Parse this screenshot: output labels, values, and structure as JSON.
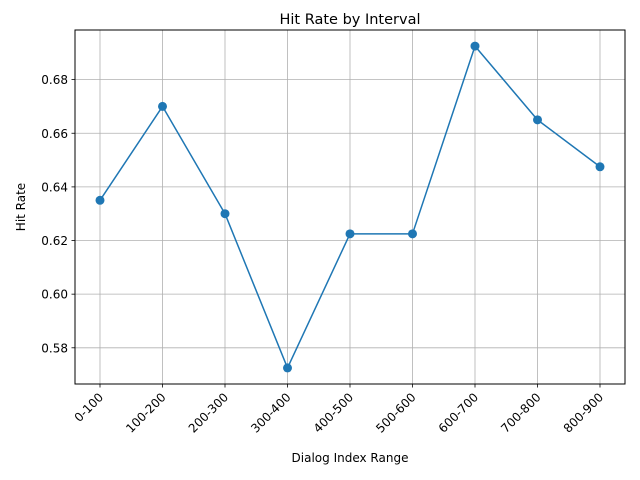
{
  "chart_data": {
    "type": "line",
    "title": "Hit Rate by Interval",
    "xlabel": "Dialog Index Range",
    "ylabel": "Hit Rate",
    "categories": [
      "0-100",
      "100-200",
      "200-300",
      "300-400",
      "400-500",
      "500-600",
      "600-700",
      "700-800",
      "800-900"
    ],
    "series": [
      {
        "values": [
          0.635,
          0.67,
          0.63,
          0.5725,
          0.6225,
          0.6225,
          0.6925,
          0.665,
          0.6475
        ]
      }
    ],
    "yticks": [
      "0.58",
      "0.60",
      "0.62",
      "0.64",
      "0.66",
      "0.68"
    ],
    "ytick_values": [
      0.58,
      0.6,
      0.62,
      0.64,
      0.66,
      0.68
    ],
    "ylim": [
      0.5665,
      0.6985
    ],
    "grid": true,
    "marker": "circle",
    "line_color": "#1f77b4"
  }
}
